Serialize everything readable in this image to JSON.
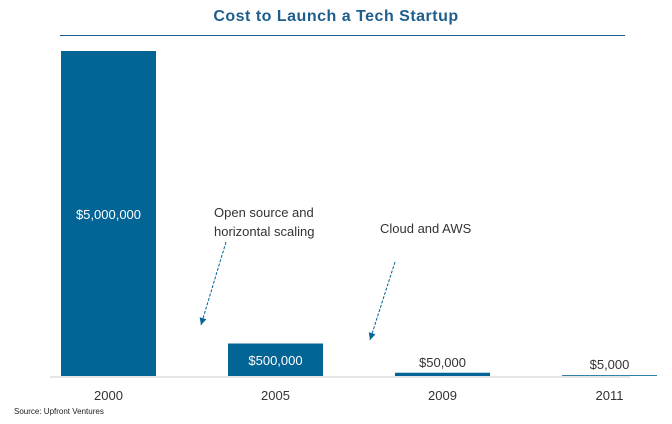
{
  "colors": {
    "bar": "#036496",
    "title": "#1e5e8c",
    "arrow": "#036496",
    "axis": "#999999"
  },
  "chart_data": {
    "type": "bar",
    "title": "Cost to Launch a Tech Startup",
    "categories": [
      "2000",
      "2005",
      "2009",
      "2011"
    ],
    "values": [
      5000000,
      500000,
      50000,
      5000
    ],
    "value_labels": [
      "$5,000,000",
      "$500,000",
      "$50,000",
      "$5,000"
    ],
    "ylim": [
      0,
      5000000
    ],
    "xlabel": "",
    "ylabel": "",
    "grid": false,
    "annotations": [
      {
        "lines": [
          "Open source and",
          "horizontal scaling"
        ]
      },
      {
        "lines": [
          "Cloud and AWS"
        ]
      }
    ],
    "source": "Source:  Upfront  Ventures"
  }
}
